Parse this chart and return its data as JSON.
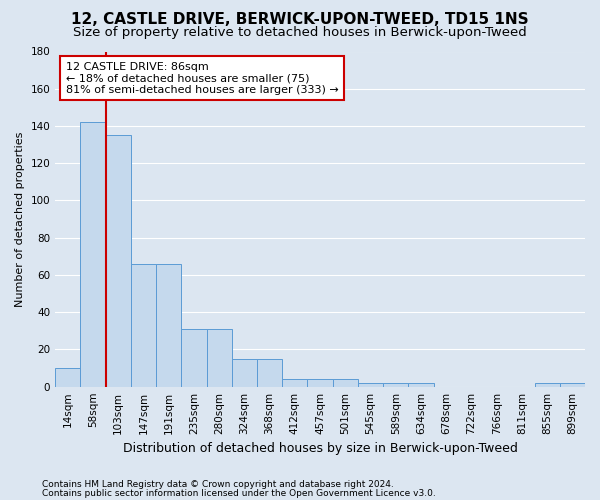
{
  "title": "12, CASTLE DRIVE, BERWICK-UPON-TWEED, TD15 1NS",
  "subtitle": "Size of property relative to detached houses in Berwick-upon-Tweed",
  "xlabel": "Distribution of detached houses by size in Berwick-upon-Tweed",
  "ylabel": "Number of detached properties",
  "footnote1": "Contains HM Land Registry data © Crown copyright and database right 2024.",
  "footnote2": "Contains public sector information licensed under the Open Government Licence v3.0.",
  "bar_labels": [
    "14sqm",
    "58sqm",
    "103sqm",
    "147sqm",
    "191sqm",
    "235sqm",
    "280sqm",
    "324sqm",
    "368sqm",
    "412sqm",
    "457sqm",
    "501sqm",
    "545sqm",
    "589sqm",
    "634sqm",
    "678sqm",
    "722sqm",
    "766sqm",
    "811sqm",
    "855sqm",
    "899sqm"
  ],
  "bar_values": [
    10,
    142,
    135,
    66,
    66,
    31,
    31,
    15,
    15,
    4,
    4,
    4,
    2,
    2,
    2,
    0,
    0,
    0,
    0,
    2,
    2
  ],
  "bar_color": "#c5d9ed",
  "bar_edge_color": "#5b9bd5",
  "background_color": "#dce6f1",
  "plot_bg_color": "#dce6f1",
  "grid_color": "#ffffff",
  "ylim": [
    0,
    180
  ],
  "yticks": [
    0,
    20,
    40,
    60,
    80,
    100,
    120,
    140,
    160,
    180
  ],
  "property_line_x": 1.5,
  "annotation_line1": "12 CASTLE DRIVE: 86sqm",
  "annotation_line2": "← 18% of detached houses are smaller (75)",
  "annotation_line3": "81% of semi-detached houses are larger (333) →",
  "annotation_box_facecolor": "#ffffff",
  "annotation_border_color": "#cc0000",
  "red_line_color": "#cc0000",
  "title_fontsize": 11,
  "subtitle_fontsize": 9.5,
  "xlabel_fontsize": 9,
  "ylabel_fontsize": 8,
  "tick_fontsize": 7.5,
  "annotation_fontsize": 8,
  "footnote_fontsize": 6.5
}
